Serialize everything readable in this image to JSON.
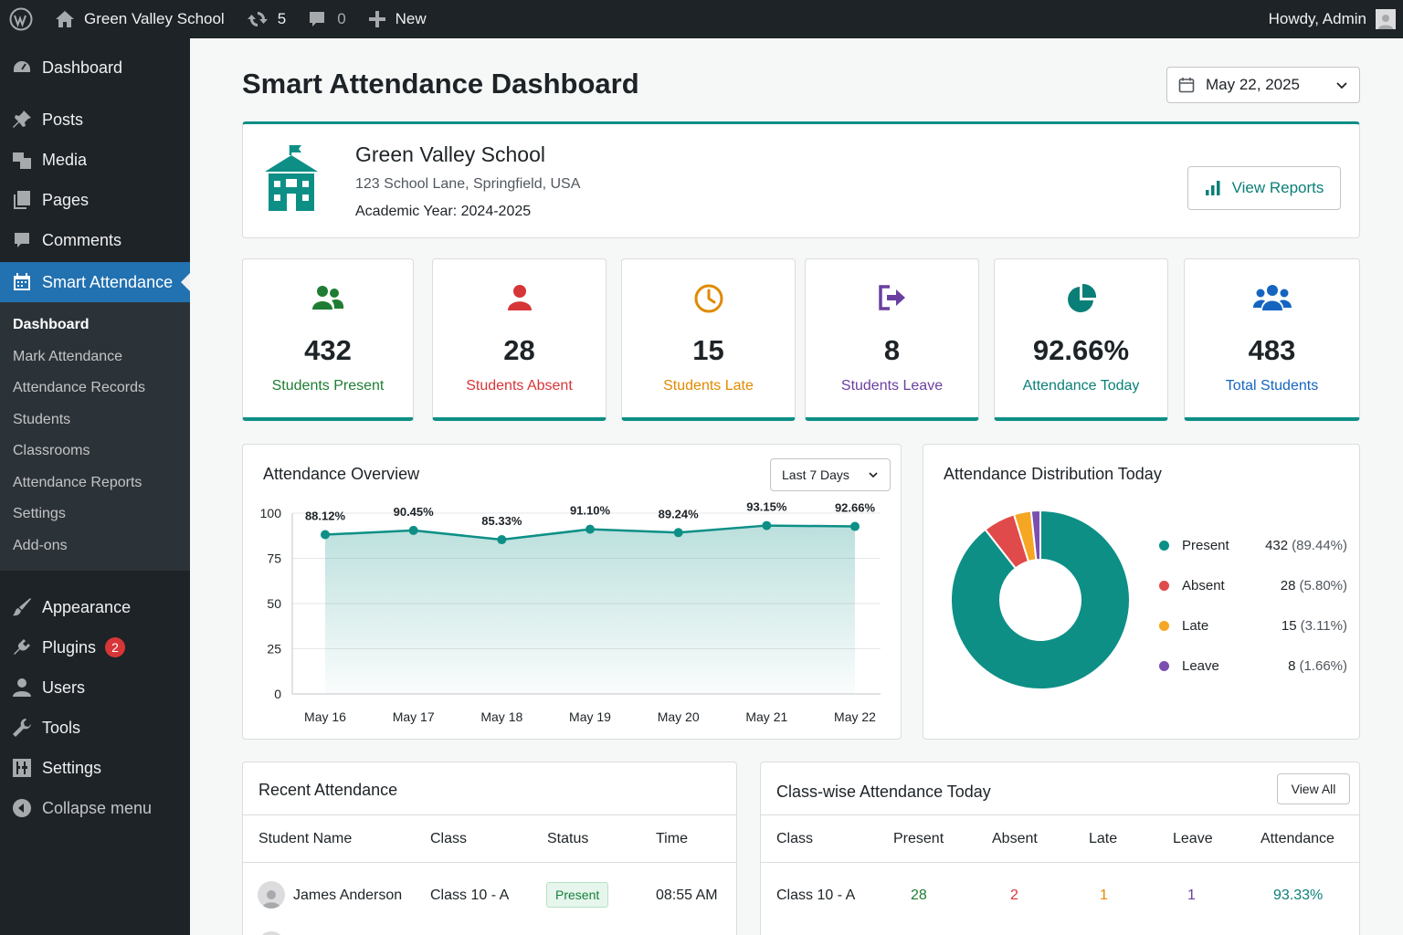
{
  "adminbar": {
    "site_name": "Green Valley School",
    "updates_count": "5",
    "comments_count": "0",
    "new_label": "New",
    "howdy": "Howdy, Admin"
  },
  "sidebar": {
    "items_top": [
      {
        "label": "Dashboard",
        "icon": "dashboard-icon"
      },
      {
        "label": "Posts",
        "icon": "pin-icon"
      },
      {
        "label": "Media",
        "icon": "media-icon"
      },
      {
        "label": "Pages",
        "icon": "pages-icon"
      },
      {
        "label": "Comments",
        "icon": "comment-icon"
      }
    ],
    "active": {
      "label": "Smart Attendance",
      "icon": "calendar-icon"
    },
    "submenu": [
      "Dashboard",
      "Mark Attendance",
      "Attendance Records",
      "Students",
      "Classrooms",
      "Attendance Reports",
      "Settings",
      "Add-ons"
    ],
    "items_bottom": [
      {
        "label": "Appearance",
        "icon": "brush-icon"
      },
      {
        "label": "Plugins",
        "icon": "plugin-icon",
        "badge": "2"
      },
      {
        "label": "Users",
        "icon": "user-icon"
      },
      {
        "label": "Tools",
        "icon": "wrench-icon"
      },
      {
        "label": "Settings",
        "icon": "sliders-icon"
      },
      {
        "label": "Collapse menu",
        "icon": "collapse-icon"
      }
    ]
  },
  "page": {
    "title": "Smart Attendance Dashboard",
    "date": "May 22, 2025"
  },
  "school": {
    "name": "Green Valley School",
    "address": "123 School Lane, Springfield, USA",
    "academic_year": "Academic Year: 2024-2025",
    "view_reports": "View Reports"
  },
  "stats": [
    {
      "value": "432",
      "label": "Students Present",
      "color": "#1e7d32",
      "icon": "users-icon"
    },
    {
      "value": "28",
      "label": "Students Absent",
      "color": "#d63638",
      "icon": "user-icon"
    },
    {
      "value": "15",
      "label": "Students Late",
      "color": "#e08a00",
      "icon": "clock-icon"
    },
    {
      "value": "8",
      "label": "Students Leave",
      "color": "#6b3fa0",
      "icon": "sign-out-icon"
    },
    {
      "value": "92.66%",
      "label": "Attendance Today",
      "color": "#0a7f78",
      "icon": "pie-icon"
    },
    {
      "value": "483",
      "label": "Total Students",
      "color": "#1565c0",
      "icon": "group-icon"
    }
  ],
  "overview": {
    "title": "Attendance Overview",
    "range": "Last 7 Days"
  },
  "chart_data": {
    "type": "area",
    "title": "Attendance Overview",
    "categories": [
      "May 16",
      "May 17",
      "May 18",
      "May 19",
      "May 20",
      "May 21",
      "May 22"
    ],
    "values": [
      88.12,
      90.45,
      85.33,
      91.1,
      89.24,
      93.15,
      92.66
    ],
    "data_labels": [
      "88.12%",
      "90.45%",
      "85.33%",
      "91.10%",
      "89.24%",
      "93.15%",
      "92.66%"
    ],
    "yticks": [
      "100",
      "75",
      "50",
      "25",
      "0"
    ],
    "ylim": [
      0,
      100
    ],
    "grid": true,
    "color": "#0d8f86"
  },
  "distribution": {
    "title": "Attendance Distribution Today",
    "type": "donut",
    "items": [
      {
        "name": "Present",
        "count": "432",
        "pct": "(89.44%)",
        "value": 89.44,
        "color": "#0d8f86"
      },
      {
        "name": "Absent",
        "count": "28",
        "pct": "(5.80%)",
        "value": 5.8,
        "color": "#e04a4a"
      },
      {
        "name": "Late",
        "count": "15",
        "pct": "(3.11%)",
        "value": 3.11,
        "color": "#f5a623"
      },
      {
        "name": "Leave",
        "count": "8",
        "pct": "(1.66%)",
        "value": 1.66,
        "color": "#7b4fb0"
      }
    ]
  },
  "recent": {
    "title": "Recent Attendance",
    "columns": [
      "Student Name",
      "Class",
      "Status",
      "Time"
    ],
    "rows": [
      {
        "name": "James Anderson",
        "class": "Class 10 - A",
        "status": "Present",
        "time": "08:55 AM"
      }
    ]
  },
  "classwise": {
    "title": "Class-wise Attendance Today",
    "view_all": "View All",
    "columns": [
      "Class",
      "Present",
      "Absent",
      "Late",
      "Leave",
      "Attendance"
    ],
    "rows": [
      {
        "class": "Class 10 - A",
        "present": "28",
        "absent": "2",
        "late": "1",
        "leave": "1",
        "attendance": "93.33%"
      }
    ]
  }
}
